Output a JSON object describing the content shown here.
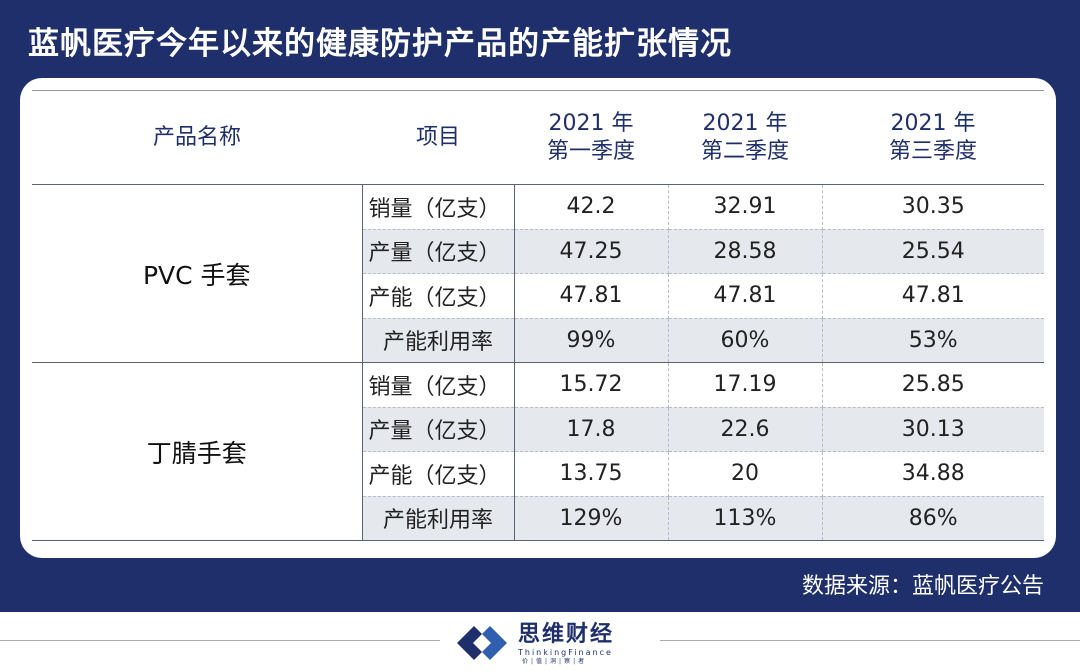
{
  "header": {
    "title": "蓝帆医疗今年以来的健康防护产品的产能扩张情况"
  },
  "source": "数据来源：蓝帆医疗公告",
  "chart_data": {
    "type": "table",
    "columns": [
      "产品名称",
      "项目",
      "2021年\n第一季度",
      "2021年\n第二季度",
      "2021年\n第三季度"
    ],
    "column_lines": [
      [
        "产品名称"
      ],
      [
        "项目"
      ],
      [
        "2021 年",
        "第一季度"
      ],
      [
        "2021 年",
        "第二季度"
      ],
      [
        "2021 年",
        "第三季度"
      ]
    ],
    "groups": [
      {
        "product": "PVC 手套",
        "rows": [
          {
            "item": "销量（亿支）",
            "values": [
              "42.2",
              "32.91",
              "30.35"
            ]
          },
          {
            "item": "产量（亿支）",
            "values": [
              "47.25",
              "28.58",
              "25.54"
            ]
          },
          {
            "item": "产能（亿支）",
            "values": [
              "47.81",
              "47.81",
              "47.81"
            ]
          },
          {
            "item": "产能利用率",
            "values": [
              "99%",
              "60%",
              "53%"
            ]
          }
        ]
      },
      {
        "product": "丁腈手套",
        "rows": [
          {
            "item": "销量（亿支）",
            "values": [
              "15.72",
              "17.19",
              "25.85"
            ]
          },
          {
            "item": "产量（亿支）",
            "values": [
              "17.8",
              "22.6",
              "30.13"
            ]
          },
          {
            "item": "产能（亿支）",
            "values": [
              "13.75",
              "20",
              "34.88"
            ]
          },
          {
            "item": "产能利用率",
            "values": [
              "129%",
              "113%",
              "86%"
            ]
          }
        ]
      }
    ]
  },
  "footer": {
    "brand_cn": "思维财经",
    "brand_en": "ThinkingFinance",
    "brand_sub": "价|值|洞|察|者"
  },
  "colors": {
    "navy": "#1f2f6b",
    "row_shade": "#e5e9ee"
  }
}
